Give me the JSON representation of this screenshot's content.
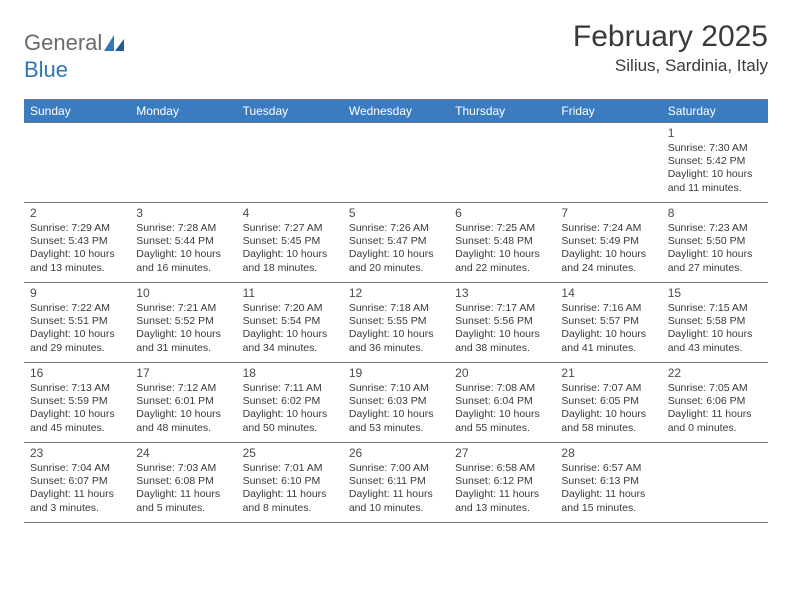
{
  "logo": {
    "text_gray": "General",
    "text_blue": "Blue"
  },
  "title": "February 2025",
  "location": "Silius, Sardinia, Italy",
  "colors": {
    "header_bg": "#3a7cbf",
    "header_fg": "#ffffff",
    "border": "#6f7478",
    "text": "#3a3a3a",
    "logo_gray": "#6a6a6a",
    "logo_blue": "#2f77b8",
    "background": "#ffffff"
  },
  "typography": {
    "title_fontsize": 30,
    "location_fontsize": 17,
    "header_fontsize": 12,
    "cell_fontsize": 10.5,
    "daynum_fontsize": 12
  },
  "day_names": [
    "Sunday",
    "Monday",
    "Tuesday",
    "Wednesday",
    "Thursday",
    "Friday",
    "Saturday"
  ],
  "weeks": [
    [
      null,
      null,
      null,
      null,
      null,
      null,
      {
        "n": "1",
        "sr": "Sunrise: 7:30 AM",
        "ss": "Sunset: 5:42 PM",
        "d1": "Daylight: 10 hours",
        "d2": "and 11 minutes."
      }
    ],
    [
      {
        "n": "2",
        "sr": "Sunrise: 7:29 AM",
        "ss": "Sunset: 5:43 PM",
        "d1": "Daylight: 10 hours",
        "d2": "and 13 minutes."
      },
      {
        "n": "3",
        "sr": "Sunrise: 7:28 AM",
        "ss": "Sunset: 5:44 PM",
        "d1": "Daylight: 10 hours",
        "d2": "and 16 minutes."
      },
      {
        "n": "4",
        "sr": "Sunrise: 7:27 AM",
        "ss": "Sunset: 5:45 PM",
        "d1": "Daylight: 10 hours",
        "d2": "and 18 minutes."
      },
      {
        "n": "5",
        "sr": "Sunrise: 7:26 AM",
        "ss": "Sunset: 5:47 PM",
        "d1": "Daylight: 10 hours",
        "d2": "and 20 minutes."
      },
      {
        "n": "6",
        "sr": "Sunrise: 7:25 AM",
        "ss": "Sunset: 5:48 PM",
        "d1": "Daylight: 10 hours",
        "d2": "and 22 minutes."
      },
      {
        "n": "7",
        "sr": "Sunrise: 7:24 AM",
        "ss": "Sunset: 5:49 PM",
        "d1": "Daylight: 10 hours",
        "d2": "and 24 minutes."
      },
      {
        "n": "8",
        "sr": "Sunrise: 7:23 AM",
        "ss": "Sunset: 5:50 PM",
        "d1": "Daylight: 10 hours",
        "d2": "and 27 minutes."
      }
    ],
    [
      {
        "n": "9",
        "sr": "Sunrise: 7:22 AM",
        "ss": "Sunset: 5:51 PM",
        "d1": "Daylight: 10 hours",
        "d2": "and 29 minutes."
      },
      {
        "n": "10",
        "sr": "Sunrise: 7:21 AM",
        "ss": "Sunset: 5:52 PM",
        "d1": "Daylight: 10 hours",
        "d2": "and 31 minutes."
      },
      {
        "n": "11",
        "sr": "Sunrise: 7:20 AM",
        "ss": "Sunset: 5:54 PM",
        "d1": "Daylight: 10 hours",
        "d2": "and 34 minutes."
      },
      {
        "n": "12",
        "sr": "Sunrise: 7:18 AM",
        "ss": "Sunset: 5:55 PM",
        "d1": "Daylight: 10 hours",
        "d2": "and 36 minutes."
      },
      {
        "n": "13",
        "sr": "Sunrise: 7:17 AM",
        "ss": "Sunset: 5:56 PM",
        "d1": "Daylight: 10 hours",
        "d2": "and 38 minutes."
      },
      {
        "n": "14",
        "sr": "Sunrise: 7:16 AM",
        "ss": "Sunset: 5:57 PM",
        "d1": "Daylight: 10 hours",
        "d2": "and 41 minutes."
      },
      {
        "n": "15",
        "sr": "Sunrise: 7:15 AM",
        "ss": "Sunset: 5:58 PM",
        "d1": "Daylight: 10 hours",
        "d2": "and 43 minutes."
      }
    ],
    [
      {
        "n": "16",
        "sr": "Sunrise: 7:13 AM",
        "ss": "Sunset: 5:59 PM",
        "d1": "Daylight: 10 hours",
        "d2": "and 45 minutes."
      },
      {
        "n": "17",
        "sr": "Sunrise: 7:12 AM",
        "ss": "Sunset: 6:01 PM",
        "d1": "Daylight: 10 hours",
        "d2": "and 48 minutes."
      },
      {
        "n": "18",
        "sr": "Sunrise: 7:11 AM",
        "ss": "Sunset: 6:02 PM",
        "d1": "Daylight: 10 hours",
        "d2": "and 50 minutes."
      },
      {
        "n": "19",
        "sr": "Sunrise: 7:10 AM",
        "ss": "Sunset: 6:03 PM",
        "d1": "Daylight: 10 hours",
        "d2": "and 53 minutes."
      },
      {
        "n": "20",
        "sr": "Sunrise: 7:08 AM",
        "ss": "Sunset: 6:04 PM",
        "d1": "Daylight: 10 hours",
        "d2": "and 55 minutes."
      },
      {
        "n": "21",
        "sr": "Sunrise: 7:07 AM",
        "ss": "Sunset: 6:05 PM",
        "d1": "Daylight: 10 hours",
        "d2": "and 58 minutes."
      },
      {
        "n": "22",
        "sr": "Sunrise: 7:05 AM",
        "ss": "Sunset: 6:06 PM",
        "d1": "Daylight: 11 hours",
        "d2": "and 0 minutes."
      }
    ],
    [
      {
        "n": "23",
        "sr": "Sunrise: 7:04 AM",
        "ss": "Sunset: 6:07 PM",
        "d1": "Daylight: 11 hours",
        "d2": "and 3 minutes."
      },
      {
        "n": "24",
        "sr": "Sunrise: 7:03 AM",
        "ss": "Sunset: 6:08 PM",
        "d1": "Daylight: 11 hours",
        "d2": "and 5 minutes."
      },
      {
        "n": "25",
        "sr": "Sunrise: 7:01 AM",
        "ss": "Sunset: 6:10 PM",
        "d1": "Daylight: 11 hours",
        "d2": "and 8 minutes."
      },
      {
        "n": "26",
        "sr": "Sunrise: 7:00 AM",
        "ss": "Sunset: 6:11 PM",
        "d1": "Daylight: 11 hours",
        "d2": "and 10 minutes."
      },
      {
        "n": "27",
        "sr": "Sunrise: 6:58 AM",
        "ss": "Sunset: 6:12 PM",
        "d1": "Daylight: 11 hours",
        "d2": "and 13 minutes."
      },
      {
        "n": "28",
        "sr": "Sunrise: 6:57 AM",
        "ss": "Sunset: 6:13 PM",
        "d1": "Daylight: 11 hours",
        "d2": "and 15 minutes."
      },
      null
    ]
  ]
}
